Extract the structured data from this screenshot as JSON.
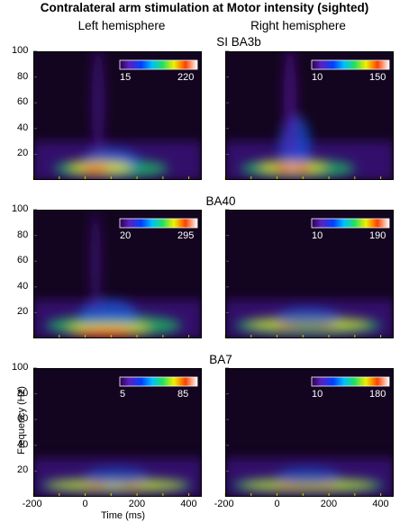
{
  "title": "Contralateral arm stimulation at Motor intensity (sighted)",
  "columns": [
    "Left hemisphere",
    "Right hemisphere"
  ],
  "ylabel": "Frequency (Hz)",
  "xlabel": "Time (ms)",
  "x_ticks": [
    "-200",
    "0",
    "200",
    "400"
  ],
  "y_ticks": [
    "100",
    "80",
    "60",
    "40",
    "20"
  ],
  "chart_data": [
    {
      "type": "heatmap",
      "region": "SI BA3b",
      "hemisphere": "Left hemisphere",
      "colorbar": {
        "min": "15",
        "max": "220"
      },
      "xlim": [
        -200,
        450
      ],
      "ylim": [
        0,
        100
      ]
    },
    {
      "type": "heatmap",
      "region": "SI BA3b",
      "hemisphere": "Right hemisphere",
      "colorbar": {
        "min": "10",
        "max": "150"
      },
      "xlim": [
        -200,
        450
      ],
      "ylim": [
        0,
        100
      ]
    },
    {
      "type": "heatmap",
      "region": "BA40",
      "hemisphere": "Left hemisphere",
      "colorbar": {
        "min": "20",
        "max": "295"
      },
      "xlim": [
        -200,
        450
      ],
      "ylim": [
        0,
        100
      ]
    },
    {
      "type": "heatmap",
      "region": "BA40",
      "hemisphere": "Right hemisphere",
      "colorbar": {
        "min": "10",
        "max": "190"
      },
      "xlim": [
        -200,
        450
      ],
      "ylim": [
        0,
        100
      ]
    },
    {
      "type": "heatmap",
      "region": "BA7",
      "hemisphere": "Left hemisphere",
      "colorbar": {
        "min": "5",
        "max": "85"
      },
      "xlim": [
        -200,
        450
      ],
      "ylim": [
        0,
        100
      ]
    },
    {
      "type": "heatmap",
      "region": "BA7",
      "hemisphere": "Right hemisphere",
      "colorbar": {
        "min": "10",
        "max": "180"
      },
      "xlim": [
        -200,
        450
      ],
      "ylim": [
        0,
        100
      ]
    }
  ]
}
